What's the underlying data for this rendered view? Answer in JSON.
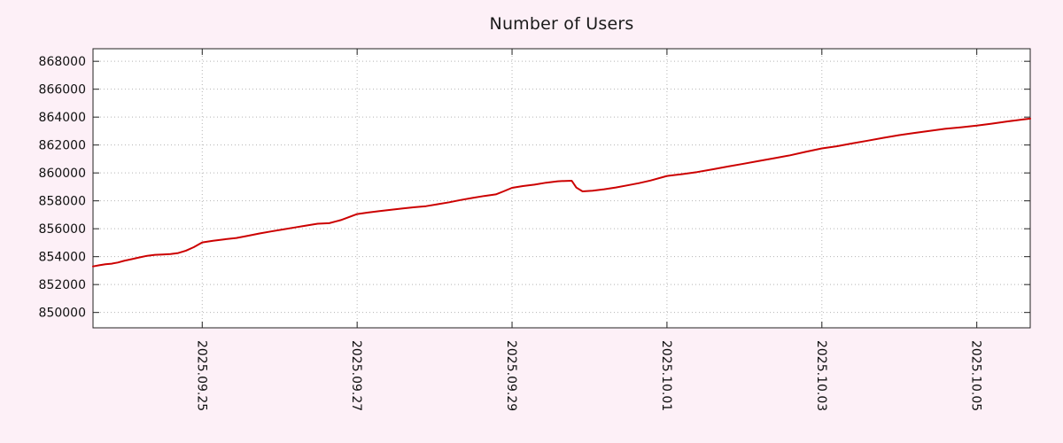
{
  "page": {
    "background": "#fdf0f7",
    "text_color": "#1a1a1a"
  },
  "chart_data": {
    "type": "line",
    "title": "Number of Users",
    "plot_bg": "#ffffff",
    "grid_color": "#b4b4b4",
    "border_color": "#222222",
    "line_color": "#cc0000",
    "xlabel": "",
    "ylabel": "",
    "xlim": [
      0,
      12.1
    ],
    "ylim": [
      848900,
      868900
    ],
    "x_unit": "days from 2025.09.23 (approx)",
    "x_ticks": [
      {
        "pos": 1.41,
        "label": "2025.09.25"
      },
      {
        "pos": 3.41,
        "label": "2025.09.27"
      },
      {
        "pos": 5.41,
        "label": "2025.09.29"
      },
      {
        "pos": 7.41,
        "label": "2025.10.01"
      },
      {
        "pos": 9.41,
        "label": "2025.10.03"
      },
      {
        "pos": 11.41,
        "label": "2025.10.05"
      }
    ],
    "y_ticks": [
      {
        "value": 850000,
        "label": "850000"
      },
      {
        "value": 852000,
        "label": "852000"
      },
      {
        "value": 854000,
        "label": "854000"
      },
      {
        "value": 856000,
        "label": "856000"
      },
      {
        "value": 858000,
        "label": "858000"
      },
      {
        "value": 860000,
        "label": "860000"
      },
      {
        "value": 862000,
        "label": "862000"
      },
      {
        "value": 864000,
        "label": "864000"
      },
      {
        "value": 866000,
        "label": "866000"
      },
      {
        "value": 868000,
        "label": "868000"
      }
    ],
    "grid": "dotted",
    "legend": "none",
    "series": [
      {
        "name": "Number of Users",
        "color": "#cc0000",
        "points": [
          [
            0.0,
            853300
          ],
          [
            0.08,
            853380
          ],
          [
            0.16,
            853450
          ],
          [
            0.24,
            853500
          ],
          [
            0.32,
            853580
          ],
          [
            0.4,
            853700
          ],
          [
            0.5,
            853820
          ],
          [
            0.6,
            853950
          ],
          [
            0.7,
            854060
          ],
          [
            0.8,
            854130
          ],
          [
            0.9,
            854160
          ],
          [
            1.0,
            854190
          ],
          [
            1.1,
            854260
          ],
          [
            1.2,
            854430
          ],
          [
            1.3,
            854680
          ],
          [
            1.41,
            855020
          ],
          [
            1.55,
            855140
          ],
          [
            1.7,
            855240
          ],
          [
            1.85,
            855340
          ],
          [
            2.0,
            855500
          ],
          [
            2.15,
            855660
          ],
          [
            2.3,
            855810
          ],
          [
            2.45,
            855950
          ],
          [
            2.6,
            856090
          ],
          [
            2.75,
            856230
          ],
          [
            2.9,
            856360
          ],
          [
            3.05,
            856400
          ],
          [
            3.2,
            856620
          ],
          [
            3.41,
            857050
          ],
          [
            3.55,
            857160
          ],
          [
            3.7,
            857260
          ],
          [
            3.85,
            857360
          ],
          [
            4.0,
            857450
          ],
          [
            4.15,
            857540
          ],
          [
            4.3,
            857620
          ],
          [
            4.45,
            857760
          ],
          [
            4.6,
            857900
          ],
          [
            4.75,
            858060
          ],
          [
            4.9,
            858210
          ],
          [
            5.05,
            858350
          ],
          [
            5.2,
            858460
          ],
          [
            5.3,
            858680
          ],
          [
            5.41,
            858930
          ],
          [
            5.55,
            859060
          ],
          [
            5.7,
            859160
          ],
          [
            5.85,
            859300
          ],
          [
            6.0,
            859400
          ],
          [
            6.1,
            859430
          ],
          [
            6.18,
            859440
          ],
          [
            6.24,
            858950
          ],
          [
            6.32,
            858680
          ],
          [
            6.45,
            858720
          ],
          [
            6.6,
            858830
          ],
          [
            6.75,
            858960
          ],
          [
            6.9,
            859110
          ],
          [
            7.05,
            859270
          ],
          [
            7.2,
            859460
          ],
          [
            7.41,
            859780
          ],
          [
            7.6,
            859910
          ],
          [
            7.8,
            860060
          ],
          [
            8.0,
            860260
          ],
          [
            8.2,
            860460
          ],
          [
            8.4,
            860660
          ],
          [
            8.6,
            860860
          ],
          [
            8.8,
            861060
          ],
          [
            9.0,
            861260
          ],
          [
            9.2,
            861510
          ],
          [
            9.41,
            861760
          ],
          [
            9.6,
            861910
          ],
          [
            9.8,
            862110
          ],
          [
            10.0,
            862310
          ],
          [
            10.2,
            862510
          ],
          [
            10.41,
            862710
          ],
          [
            10.6,
            862860
          ],
          [
            10.8,
            863010
          ],
          [
            11.0,
            863160
          ],
          [
            11.2,
            863270
          ],
          [
            11.41,
            863390
          ],
          [
            11.6,
            863530
          ],
          [
            11.8,
            863690
          ],
          [
            12.0,
            863830
          ],
          [
            12.1,
            863890
          ]
        ]
      }
    ]
  }
}
